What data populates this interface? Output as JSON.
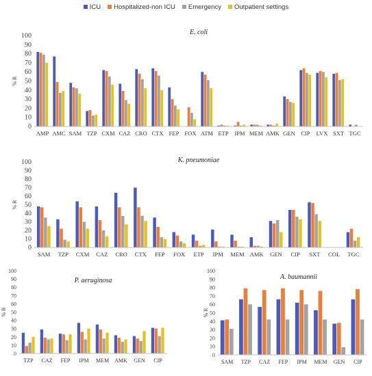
{
  "colors": {
    "ICU": "#4a5bbf",
    "Hospitalized-non ICU": "#ea7f3a",
    "Emergency": "#a3a3a3",
    "Outpatient settings": "#e4c21f"
  },
  "legend": [
    "ICU",
    "Hospitalized-non ICU",
    "Emergency",
    "Outpatient settings"
  ],
  "chart_data": [
    {
      "type": "bar",
      "title": "E. coli",
      "ylabel": "% R",
      "ylim": [
        0,
        100
      ],
      "yticks": [
        0,
        10,
        20,
        30,
        40,
        50,
        60,
        70,
        80,
        90,
        100
      ],
      "categories": [
        "AMP",
        "AMC",
        "SAM",
        "TZP",
        "CXM",
        "CAZ",
        "CRO",
        "CTX",
        "FEP",
        "FOX",
        "ATM",
        "ETP",
        "IPM",
        "MEM",
        "AMK",
        "GEN",
        "CIP",
        "LVX",
        "SXT",
        "TGC"
      ],
      "series": [
        {
          "name": "ICU",
          "values": [
            82,
            77,
            48,
            17,
            62,
            47,
            63,
            64,
            43,
            0,
            60,
            1,
            1,
            2,
            2,
            33,
            62,
            59,
            58,
            2
          ]
        },
        {
          "name": "Hospitalized-non ICU",
          "values": [
            81,
            49,
            43,
            18,
            61,
            39,
            58,
            61,
            30,
            21,
            57,
            2,
            5,
            2,
            2,
            30,
            64,
            61,
            59,
            0
          ]
        },
        {
          "name": "Emergency",
          "values": [
            79,
            37,
            42,
            12,
            55,
            29,
            52,
            56,
            23,
            15,
            51,
            1,
            1,
            2,
            1,
            27,
            59,
            60,
            51,
            2
          ]
        },
        {
          "name": "Outpatient settings",
          "values": [
            70,
            39,
            36,
            13,
            46,
            25,
            42,
            40,
            19,
            8,
            42,
            1,
            2,
            1,
            3,
            26,
            57,
            54,
            52,
            0
          ]
        }
      ]
    },
    {
      "type": "bar",
      "title": "K. pneumoniae",
      "ylabel": "% R",
      "ylim": [
        0,
        100
      ],
      "yticks": [
        0,
        10,
        20,
        30,
        40,
        50,
        60,
        70,
        80,
        90,
        100
      ],
      "categories": [
        "SAM",
        "TZP",
        "CXM",
        "CAZ",
        "CRO",
        "CTX",
        "FEP",
        "FOX",
        "ETP",
        "IPM",
        "MEM",
        "AMK",
        "GEN",
        "CIP",
        "SXT",
        "COL",
        "TGC"
      ],
      "series": [
        {
          "name": "ICU",
          "values": [
            48,
            33,
            54,
            48,
            64,
            70,
            35,
            18,
            15,
            21,
            15,
            12,
            31,
            44,
            53,
            0,
            18
          ]
        },
        {
          "name": "Hospitalized-non ICU",
          "values": [
            47,
            22,
            47,
            32,
            47,
            47,
            24,
            14,
            8,
            7,
            8,
            2,
            28,
            44,
            52,
            0,
            22
          ]
        },
        {
          "name": "Emergency",
          "values": [
            35,
            9,
            30,
            20,
            37,
            37,
            12,
            7,
            2,
            1,
            1,
            2,
            32,
            36,
            39,
            0,
            8
          ]
        },
        {
          "name": "Outpatient settings",
          "values": [
            25,
            7,
            22,
            13,
            27,
            31,
            10,
            5,
            3,
            1,
            1,
            1,
            18,
            33,
            31,
            0,
            12
          ]
        }
      ]
    },
    {
      "type": "bar",
      "title": "P. aeruginosa",
      "ylabel": "% R",
      "ylim": [
        0,
        100
      ],
      "yticks": [
        0,
        10,
        20,
        30,
        40,
        50,
        60,
        70,
        80,
        90,
        100
      ],
      "categories": [
        "TZP",
        "CAZ",
        "FEP",
        "IPM",
        "MEM",
        "AMK",
        "GEN",
        "CIP"
      ],
      "series": [
        {
          "name": "ICU",
          "values": [
            25,
            29,
            24,
            37,
            35,
            22,
            21,
            31
          ]
        },
        {
          "name": "Hospitalized-non ICU",
          "values": [
            9,
            19,
            23,
            26,
            29,
            19,
            18,
            30
          ]
        },
        {
          "name": "Emergency",
          "values": [
            13,
            17,
            16,
            17,
            18,
            14,
            15,
            21
          ]
        },
        {
          "name": "Outpatient settings",
          "values": [
            20,
            18,
            23,
            30,
            25,
            17,
            27,
            31
          ]
        }
      ]
    },
    {
      "type": "bar",
      "title": "A. baumannii",
      "ylabel": "% R",
      "ylim": [
        0,
        100
      ],
      "yticks": [
        0,
        10,
        20,
        30,
        40,
        50,
        60,
        70,
        80,
        90,
        100
      ],
      "categories": [
        "SAM",
        "TZP",
        "CAZ",
        "FEP",
        "IPM",
        "MEM",
        "GEN",
        "CIP"
      ],
      "series": [
        {
          "name": "ICU",
          "values": [
            41,
            66,
            57,
            66,
            62,
            53,
            37,
            66
          ]
        },
        {
          "name": "Hospitalized-non ICU",
          "values": [
            42,
            79,
            77,
            79,
            77,
            76,
            38,
            78
          ]
        },
        {
          "name": "Emergency",
          "values": [
            31,
            60,
            42,
            42,
            60,
            42,
            9,
            42
          ]
        }
      ]
    }
  ]
}
